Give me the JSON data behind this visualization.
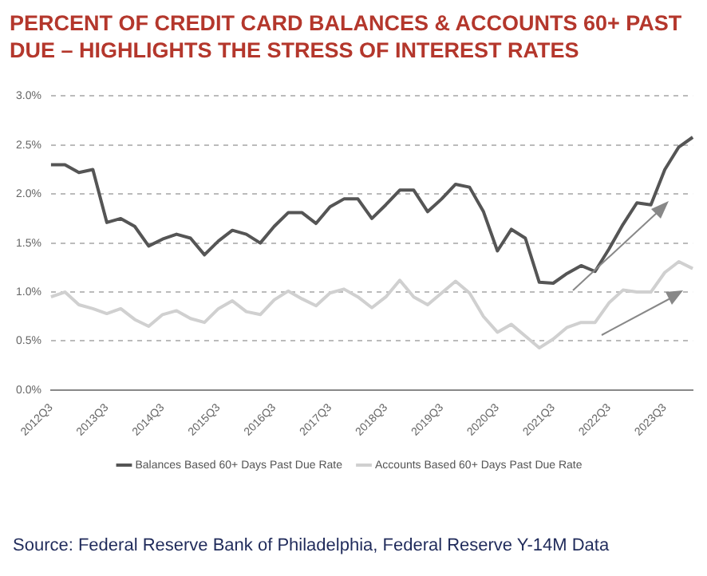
{
  "chart_data": {
    "type": "line",
    "title": "PERCENT OF CREDIT CARD BALANCES & ACCOUNTS 60+ PAST DUE – HIGHLIGHTS THE STRESS OF INTEREST RATES",
    "categories": [
      "2012Q3",
      null,
      null,
      null,
      "2013Q3",
      null,
      null,
      null,
      "2014Q3",
      null,
      null,
      null,
      "2015Q3",
      null,
      null,
      null,
      "2016Q3",
      null,
      null,
      null,
      "2017Q3",
      null,
      null,
      null,
      "2018Q3",
      null,
      null,
      null,
      "2019Q3",
      null,
      null,
      null,
      "2020Q3",
      null,
      null,
      null,
      "2021Q3",
      null,
      null,
      null,
      "2022Q3",
      null,
      null,
      null,
      "2023Q3",
      null,
      null
    ],
    "series": [
      {
        "name": "Balances Based 60+ Days Past Due Rate",
        "color": "#555555",
        "values": [
          2.3,
          2.3,
          2.22,
          2.25,
          1.71,
          1.75,
          1.67,
          1.47,
          1.54,
          1.59,
          1.55,
          1.38,
          1.52,
          1.63,
          1.59,
          1.5,
          1.67,
          1.81,
          1.81,
          1.7,
          1.87,
          1.95,
          1.95,
          1.75,
          1.89,
          2.04,
          2.04,
          1.82,
          1.95,
          2.1,
          2.07,
          1.82,
          1.42,
          1.64,
          1.55,
          1.1,
          1.09,
          1.19,
          1.27,
          1.21,
          1.44,
          1.69,
          1.91,
          1.89,
          2.25,
          2.48,
          2.58
        ]
      },
      {
        "name": "Accounts Based 60+ Days Past Due Rate",
        "color": "#d0d0d0",
        "values": [
          0.95,
          1.0,
          0.87,
          0.83,
          0.78,
          0.83,
          0.72,
          0.65,
          0.77,
          0.81,
          0.73,
          0.69,
          0.83,
          0.91,
          0.8,
          0.77,
          0.92,
          1.01,
          0.93,
          0.86,
          0.99,
          1.03,
          0.95,
          0.84,
          0.95,
          1.12,
          0.95,
          0.87,
          0.99,
          1.11,
          0.99,
          0.75,
          0.59,
          0.67,
          0.55,
          0.43,
          0.52,
          0.64,
          0.69,
          0.69,
          0.89,
          1.02,
          1.0,
          1.0,
          1.2,
          1.31,
          1.24
        ]
      }
    ],
    "ylim": [
      0,
      3
    ],
    "yticks": [
      {
        "value": 0,
        "label": "0.0%"
      },
      {
        "value": 0.5,
        "label": "0.5%"
      },
      {
        "value": 1,
        "label": "1.0%"
      },
      {
        "value": 1.5,
        "label": "1.5%"
      },
      {
        "value": 2,
        "label": "2.0%"
      },
      {
        "value": 2.5,
        "label": "2.5%"
      },
      {
        "value": 3,
        "label": "3.0%"
      }
    ],
    "grid": "y",
    "legend": "bottom",
    "marker": "none",
    "line_style": "solid",
    "annotations": [
      "Source: Federal Reserve Bank of Philadelphia,  Federal Reserve Y-14M Data"
    ]
  }
}
